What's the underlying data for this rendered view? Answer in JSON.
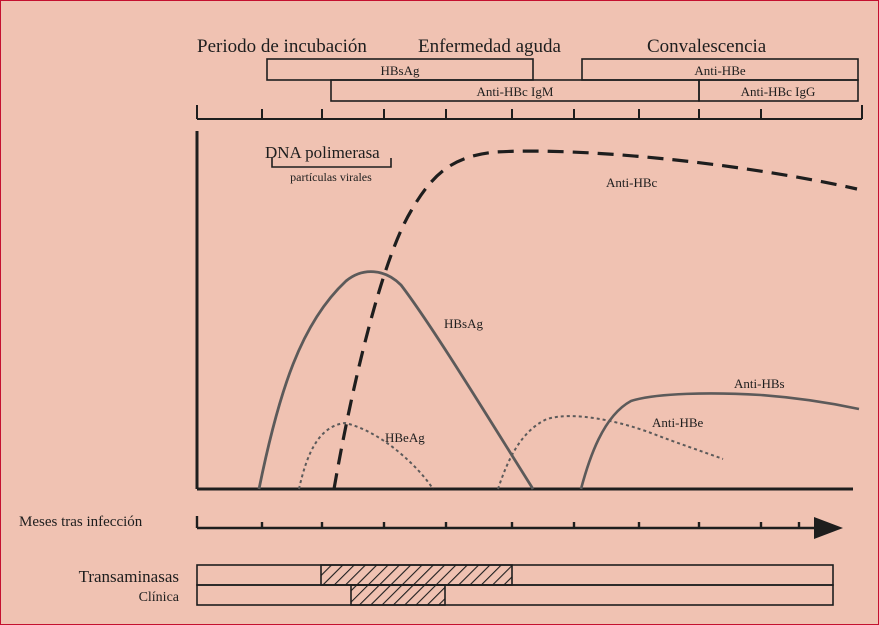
{
  "colors": {
    "background": "#f0c2b2",
    "frame": "#c4102f",
    "ink": "#1e1e1e"
  },
  "phases": {
    "incubation": "Periodo de incubación",
    "acute": "Enfermedad aguda",
    "convalescence": "Convalescencia"
  },
  "marker_bars": {
    "hbsag": "HBsAg",
    "anti_hbe": "Anti-HBe",
    "anti_hbc_igm": "Anti-HBc IgM",
    "anti_hbc_igg": "Anti-HBc IgG"
  },
  "annotations": {
    "dna_polymerase": "DNA polimerasa",
    "viral_particles": "partículas virales"
  },
  "curve_labels": {
    "anti_hbc": "Anti-HBc",
    "hbsag_curve": "HBsAg",
    "hbeag_curve": "HBeAg",
    "anti_hbs_curve": "Anti-HBs",
    "anti_hbe_curve": "Anti-HBe"
  },
  "time_axis": {
    "label": "Meses tras infección"
  },
  "bottom_bars": {
    "transaminases": "Transaminasas",
    "clinical": "Clínica"
  }
}
